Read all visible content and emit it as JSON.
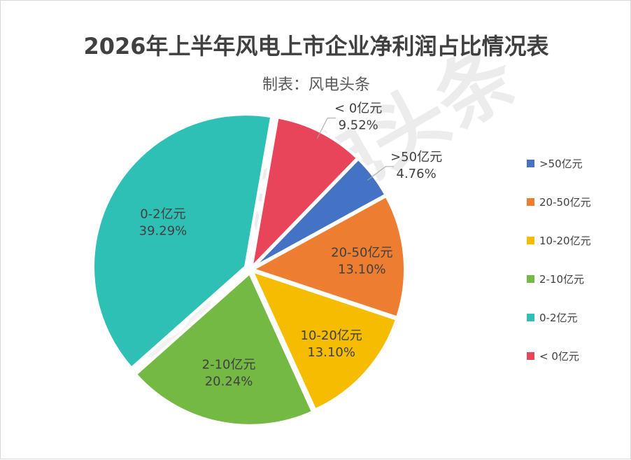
{
  "chart_data": {
    "type": "pie",
    "title": "2026年上半年风电上市企业净利润占比情况表",
    "subtitle": "制表：风电头条",
    "slices": [
      {
        "label": ">50亿元",
        "value": 4.76,
        "value_label": "4.76%",
        "color": "#4472C4"
      },
      {
        "label": "20-50亿元",
        "value": 13.1,
        "value_label": "13.10%",
        "color": "#ED7D31"
      },
      {
        "label": "10-20亿元",
        "value": 13.1,
        "value_label": "13.10%",
        "color": "#F5BC00"
      },
      {
        "label": "2-10亿元",
        "value": 20.24,
        "value_label": "20.24%",
        "color": "#73B943"
      },
      {
        "label": "0-2亿元",
        "value": 39.29,
        "value_label": "39.29%",
        "color": "#2FC0B5"
      },
      {
        "label": "< 0亿元",
        "value": 9.52,
        "value_label": "9.52%",
        "color": "#E8445A"
      }
    ],
    "legend": {
      "placement": "right",
      "entries": [
        ">50亿元",
        "20-50亿元",
        "10-20亿元",
        "2-10亿元",
        "0-2亿元",
        "< 0亿元"
      ]
    }
  },
  "watermark": {
    "text": "风电头条"
  }
}
